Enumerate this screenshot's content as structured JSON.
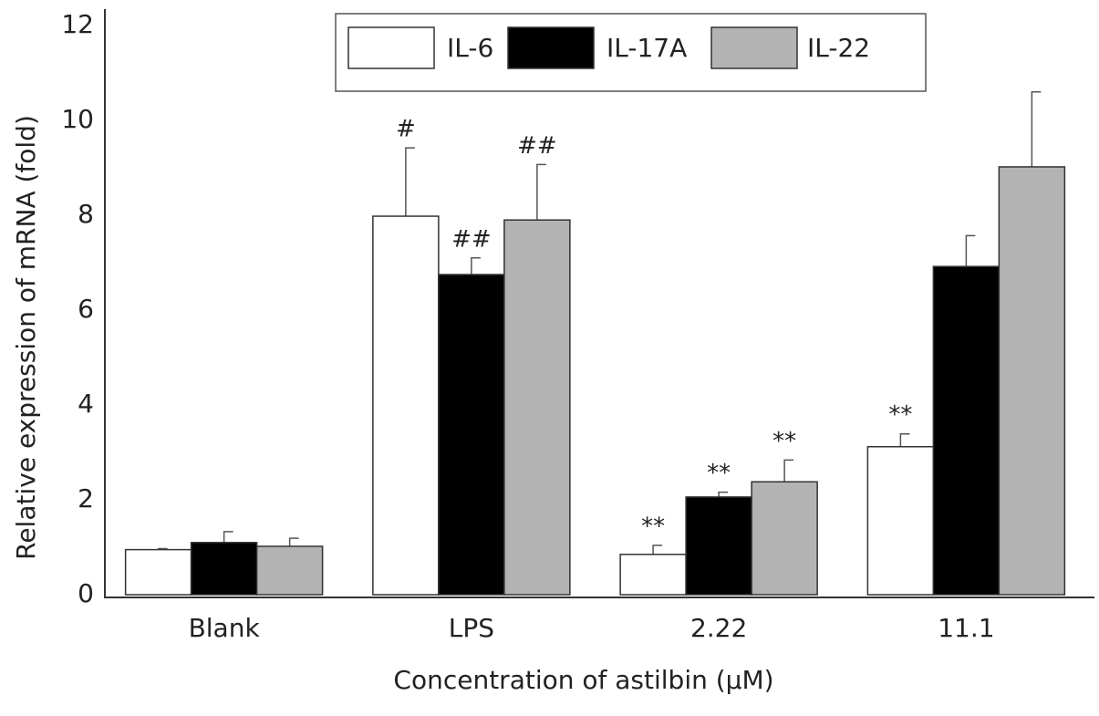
{
  "chart_data": {
    "type": "bar",
    "x_label": "Concentration of astilbin (μM)",
    "y_label": "Relative expression of mRNA (fold)",
    "categories": [
      "Blank",
      "LPS",
      "2.22",
      "11.1"
    ],
    "series": [
      {
        "name": "IL-6",
        "color": "#ffffff",
        "values": [
          0.95,
          7.98,
          0.85,
          3.12
        ],
        "errors": [
          0.02,
          1.44,
          0.19,
          0.27
        ],
        "annotations": [
          null,
          "#",
          "**",
          "**"
        ]
      },
      {
        "name": "IL-17A",
        "color": "#000000",
        "values": [
          1.1,
          6.75,
          2.06,
          6.92
        ],
        "errors": [
          0.23,
          0.35,
          0.1,
          0.65
        ],
        "annotations": [
          null,
          "##",
          "**",
          null
        ]
      },
      {
        "name": "IL-22",
        "color": "#b3b3b3",
        "values": [
          1.02,
          7.9,
          2.38,
          9.02
        ],
        "errors": [
          0.17,
          1.17,
          0.46,
          1.58
        ],
        "annotations": [
          null,
          "##",
          "**",
          null
        ]
      }
    ],
    "ylim": [
      0,
      12
    ],
    "yticks": [
      0,
      2,
      4,
      6,
      8,
      10,
      12
    ],
    "grid": false,
    "legend": "top"
  }
}
